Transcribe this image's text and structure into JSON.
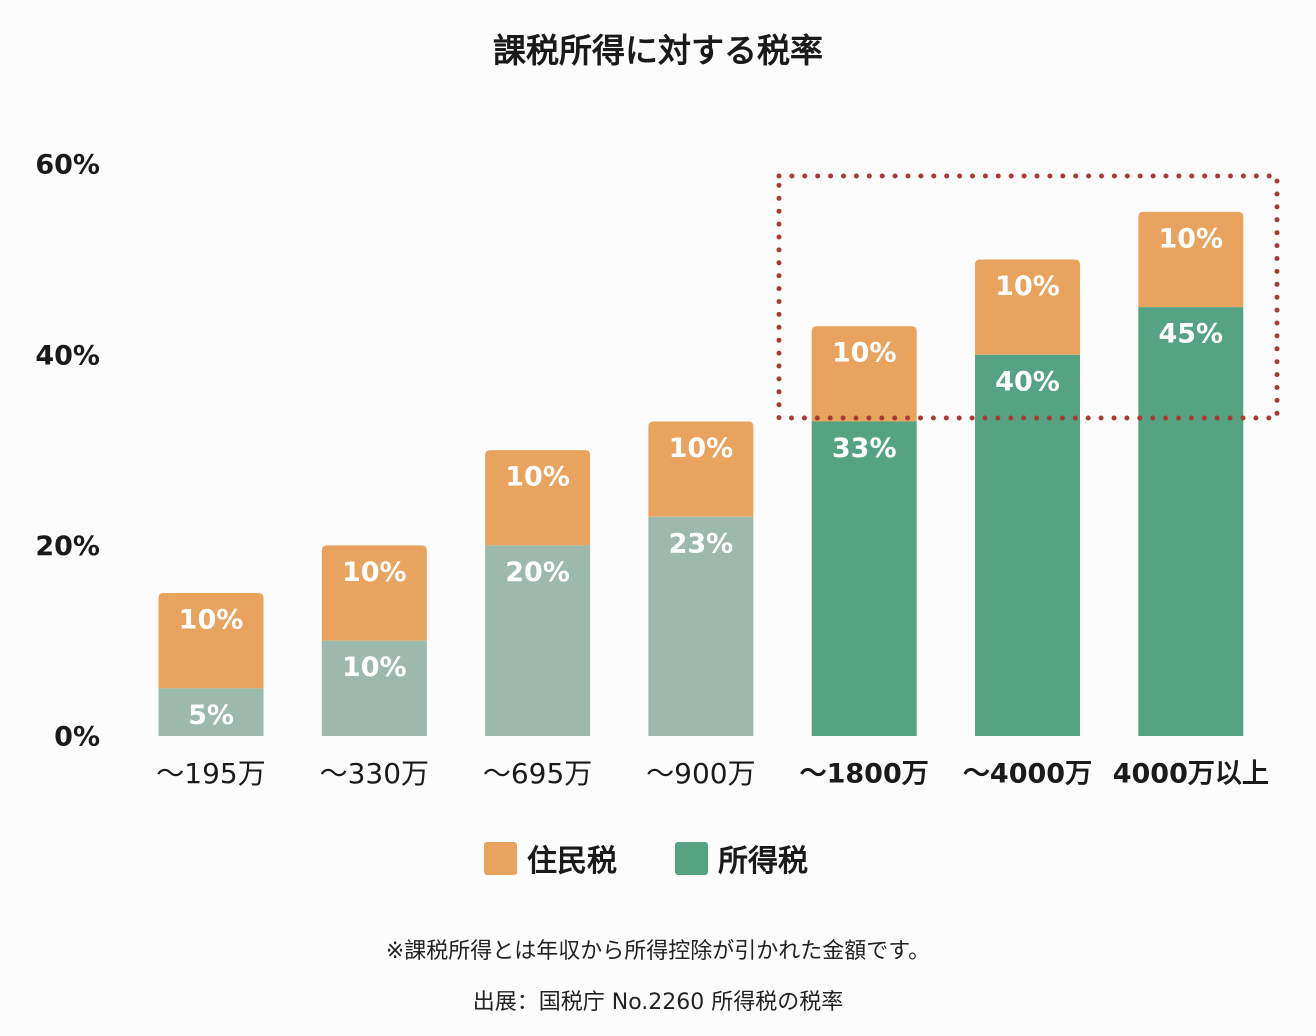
{
  "chart_data": {
    "type": "bar",
    "stacked": true,
    "title": "課税所得に対する税率",
    "categories": [
      "〜195万",
      "〜330万",
      "〜695万",
      "〜900万",
      "〜1800万",
      "〜4000万",
      "4000万以上"
    ],
    "bold_categories": [
      false,
      false,
      false,
      false,
      true,
      true,
      true
    ],
    "series": [
      {
        "name": "所得税",
        "values": [
          5,
          10,
          20,
          23,
          33,
          40,
          45
        ],
        "labels": [
          "5%",
          "10%",
          "20%",
          "23%",
          "33%",
          "40%",
          "45%"
        ]
      },
      {
        "name": "住民税",
        "values": [
          10,
          10,
          10,
          10,
          10,
          10,
          10
        ],
        "labels": [
          "10%",
          "10%",
          "10%",
          "10%",
          "10%",
          "10%",
          "10%"
        ]
      }
    ],
    "yticks": [
      "0%",
      "20%",
      "40%",
      "60%"
    ],
    "ytick_values": [
      0,
      20,
      40,
      60
    ],
    "ylim": [
      0,
      60
    ],
    "grid": false,
    "legend_position": "bottom",
    "highlight": {
      "categories": [
        "〜1800万",
        "〜4000万",
        "4000万以上"
      ],
      "style": "dotted",
      "color": "#a83a33"
    },
    "colors": {
      "resident": "#e8a45e",
      "income_low": "#9db9ad",
      "income_high": "#55a383",
      "highlight": "#a83a33"
    }
  },
  "legend": [
    {
      "label": "住民税",
      "color": "#e8a45e"
    },
    {
      "label": "所得税",
      "color": "#55a383"
    }
  ],
  "notes": {
    "definition": "※課税所得とは年収から所得控除が引かれた金額です。",
    "source": "出展：国税庁 No.2260 所得税の税率"
  }
}
